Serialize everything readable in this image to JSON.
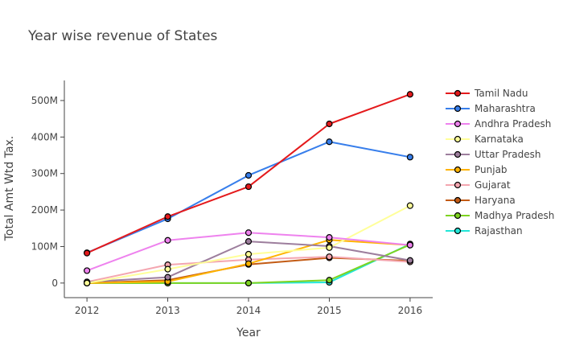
{
  "chart_data": {
    "type": "line",
    "title": "Year wise revenue of States",
    "xlabel": "Year",
    "ylabel": "Total Amt Wtd Tax.",
    "x": [
      2012,
      2013,
      2014,
      2015,
      2016
    ],
    "x_tick_labels": [
      "2012",
      "2013",
      "2014",
      "2015",
      "2016"
    ],
    "y_ticks": [
      0,
      100000000,
      200000000,
      300000000,
      400000000,
      500000000
    ],
    "y_tick_labels": [
      "0",
      "100M",
      "200M",
      "300M",
      "400M",
      "500M"
    ],
    "ylim": [
      -40000000,
      555000000
    ],
    "xlim": [
      2011.72,
      2016.28
    ],
    "legend_position": "right",
    "grid": false,
    "series": [
      {
        "name": "Tamil Nadu",
        "color": "#e41a1c",
        "values": [
          82000000,
          182000000,
          264000000,
          436000000,
          517000000
        ]
      },
      {
        "name": "Maharashtra",
        "color": "#377eeb",
        "values": [
          83000000,
          176000000,
          295000000,
          387000000,
          345000000
        ]
      },
      {
        "name": "Andhra Pradesh",
        "color": "#ee82ee",
        "values": [
          34000000,
          117000000,
          138000000,
          125000000,
          104000000
        ]
      },
      {
        "name": "Karnataka",
        "color": "#ffff99",
        "values": [
          0,
          38000000,
          79000000,
          97000000,
          212000000
        ]
      },
      {
        "name": "Uttar Pradesh",
        "color": "#9d7e9d",
        "values": [
          3000000,
          16000000,
          114000000,
          101000000,
          62000000
        ]
      },
      {
        "name": "Punjab",
        "color": "#ffb300",
        "values": [
          0,
          4000000,
          53000000,
          118000000,
          104000000
        ]
      },
      {
        "name": "Gujarat",
        "color": "#f4a6b0",
        "values": [
          3000000,
          50000000,
          64000000,
          72000000,
          58000000
        ]
      },
      {
        "name": "Haryana",
        "color": "#c35b14",
        "values": [
          0,
          8000000,
          51000000,
          69000000,
          61000000
        ]
      },
      {
        "name": "Madhya Pradesh",
        "color": "#7ed321",
        "values": [
          0,
          0,
          0,
          8000000,
          105000000
        ]
      },
      {
        "name": "Rajasthan",
        "color": "#22e6d8",
        "values": [
          0,
          0,
          0,
          2000000,
          107000000
        ]
      }
    ]
  }
}
